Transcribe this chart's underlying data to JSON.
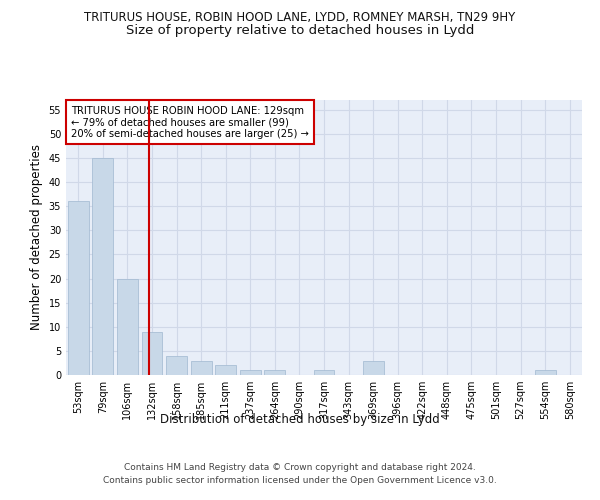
{
  "title1": "TRITURUS HOUSE, ROBIN HOOD LANE, LYDD, ROMNEY MARSH, TN29 9HY",
  "title2": "Size of property relative to detached houses in Lydd",
  "xlabel": "Distribution of detached houses by size in Lydd",
  "ylabel": "Number of detached properties",
  "categories": [
    "53sqm",
    "79sqm",
    "106sqm",
    "132sqm",
    "158sqm",
    "185sqm",
    "211sqm",
    "237sqm",
    "264sqm",
    "290sqm",
    "317sqm",
    "343sqm",
    "369sqm",
    "396sqm",
    "422sqm",
    "448sqm",
    "475sqm",
    "501sqm",
    "527sqm",
    "554sqm",
    "580sqm"
  ],
  "values": [
    36,
    45,
    20,
    9,
    4,
    3,
    2,
    1,
    1,
    0,
    1,
    0,
    3,
    0,
    0,
    0,
    0,
    0,
    0,
    1,
    0
  ],
  "bar_color": "#c8d8e8",
  "bar_edgecolor": "#a0b8d0",
  "vline_color": "#cc0000",
  "annotation_text": "TRITURUS HOUSE ROBIN HOOD LANE: 129sqm\n← 79% of detached houses are smaller (99)\n20% of semi-detached houses are larger (25) →",
  "annotation_box_color": "#ffffff",
  "annotation_box_edgecolor": "#cc0000",
  "ylim": [
    0,
    57
  ],
  "yticks": [
    0,
    5,
    10,
    15,
    20,
    25,
    30,
    35,
    40,
    45,
    50,
    55
  ],
  "grid_color": "#d0d8e8",
  "bg_color": "#e8eef8",
  "footer1": "Contains HM Land Registry data © Crown copyright and database right 2024.",
  "footer2": "Contains public sector information licensed under the Open Government Licence v3.0.",
  "title1_fontsize": 8.5,
  "title2_fontsize": 9.5,
  "xlabel_fontsize": 8.5,
  "ylabel_fontsize": 8.5,
  "tick_fontsize": 7,
  "annotation_fontsize": 7.2,
  "footer_fontsize": 6.5
}
